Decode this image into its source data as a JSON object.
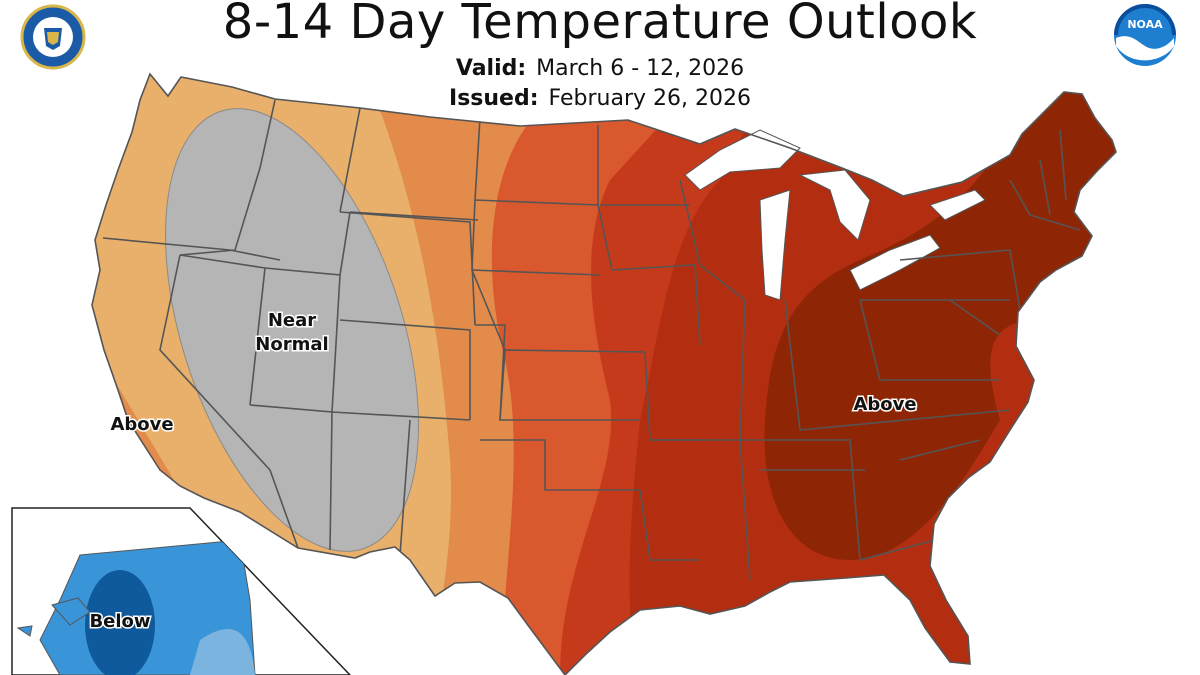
{
  "title": "8-14 Day Temperature Outlook",
  "valid": {
    "label": "Valid:",
    "value": "March 6 - 12, 2026"
  },
  "issued": {
    "label": "Issued:",
    "value": "February 26, 2026"
  },
  "labels": {
    "near_normal_1": "Near",
    "near_normal_2": "Normal",
    "above_west": "Above",
    "above_east": "Above",
    "below_alaska": "Below"
  },
  "logos": {
    "commerce_seal": "commerce-seal-icon",
    "noaa": "NOAA"
  },
  "colors": {
    "near_normal": "#b5b5b5",
    "above_33": "#e8b06a",
    "above_40": "#e38b4b",
    "above_50": "#d9582e",
    "above_60": "#c63a1c",
    "above_70": "#b32e10",
    "above_80": "#8e2606",
    "below_33": "#7cb4e0",
    "below_40": "#3a95d8",
    "below_60": "#0f5a9c",
    "border": "#555555"
  }
}
